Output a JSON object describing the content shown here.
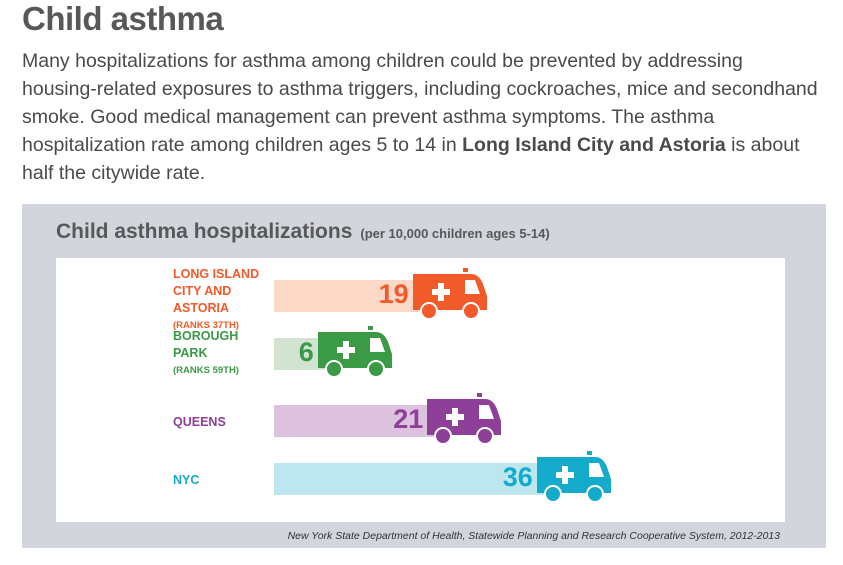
{
  "title": "Child asthma",
  "intro": {
    "part1": "Many hospitalizations for asthma among children could be prevented by addressing housing-related exposures to asthma triggers, including cockroaches, mice and secondhand smoke. Good medical management can prevent asthma symptoms. The asthma hospitalization rate among children ages 5 to 14 in ",
    "bold": "Long Island City and Astoria",
    "part2": " is about half the citywide rate."
  },
  "chart_data": {
    "type": "bar",
    "title": "Child asthma hospitalizations",
    "subtitle": "(per 10,000 children ages 5-14)",
    "categories": [
      "LONG ISLAND CITY AND ASTORIA",
      "BOROUGH PARK",
      "QUEENS",
      "NYC"
    ],
    "ranks": [
      "(RANKS 37TH)",
      "(RANKS 59TH)",
      "",
      ""
    ],
    "values": [
      19,
      6,
      21,
      36
    ],
    "colors": [
      "#f15a29",
      "#3a9a46",
      "#8e3f97",
      "#14aacb"
    ],
    "bar_colors": [
      "#fcd9c7",
      "#d3e3d2",
      "#dcc2df",
      "#bde6ef"
    ],
    "source": "New York State Department of Health, Statewide Planning and Research Cooperative System, 2012-2013"
  }
}
